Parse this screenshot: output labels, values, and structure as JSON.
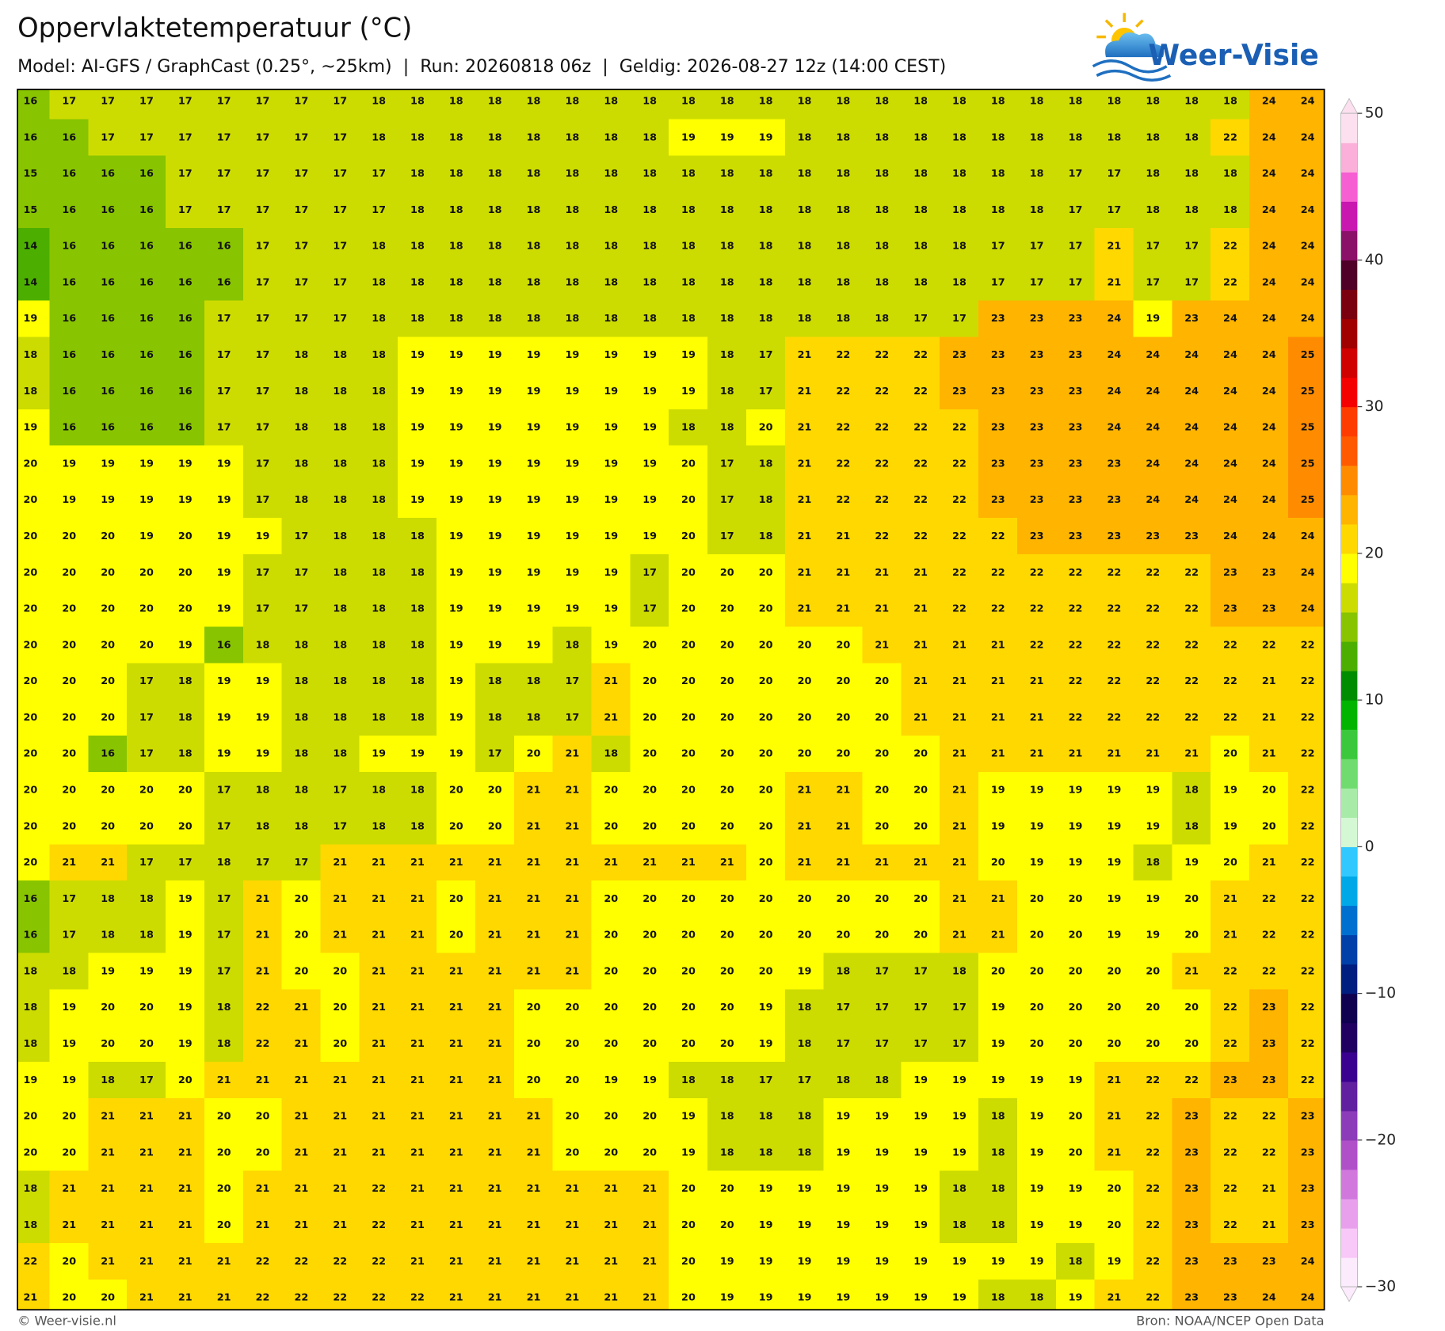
{
  "header": {
    "title": "Oppervlaktetemperatuur (°C)",
    "subtitle": "Model: AI-GFS / GraphCast (0.25°, ~25km)  |  Run: 20260818 06z  |  Geldig: 2026-08-27 12z (14:00 CEST)"
  },
  "logo": {
    "text": "Weer-Visie"
  },
  "map": {
    "grid": {
      "rows": [
        [
          16,
          17,
          17,
          17,
          17,
          17,
          17,
          17,
          17,
          18,
          18,
          18,
          18,
          18,
          18,
          18,
          18,
          18,
          18,
          18,
          18,
          18,
          18,
          18,
          18,
          18,
          18,
          18,
          18,
          18,
          18,
          18,
          24,
          24
        ],
        [
          16,
          16,
          17,
          17,
          17,
          17,
          17,
          17,
          17,
          18,
          18,
          18,
          18,
          18,
          18,
          18,
          18,
          19,
          19,
          19,
          18,
          18,
          18,
          18,
          18,
          18,
          18,
          18,
          18,
          18,
          18,
          22,
          24,
          24
        ],
        [
          15,
          16,
          16,
          16,
          17,
          17,
          17,
          17,
          17,
          17,
          18,
          18,
          18,
          18,
          18,
          18,
          18,
          18,
          18,
          18,
          18,
          18,
          18,
          18,
          18,
          18,
          18,
          17,
          17,
          18,
          18,
          18,
          24,
          24
        ],
        [
          15,
          16,
          16,
          16,
          17,
          17,
          17,
          17,
          17,
          17,
          18,
          18,
          18,
          18,
          18,
          18,
          18,
          18,
          18,
          18,
          18,
          18,
          18,
          18,
          18,
          18,
          18,
          17,
          17,
          18,
          18,
          18,
          24,
          24
        ],
        [
          14,
          16,
          16,
          16,
          16,
          16,
          17,
          17,
          17,
          18,
          18,
          18,
          18,
          18,
          18,
          18,
          18,
          18,
          18,
          18,
          18,
          18,
          18,
          18,
          18,
          17,
          17,
          17,
          21,
          17,
          17,
          22,
          24,
          24
        ],
        [
          14,
          16,
          16,
          16,
          16,
          16,
          17,
          17,
          17,
          18,
          18,
          18,
          18,
          18,
          18,
          18,
          18,
          18,
          18,
          18,
          18,
          18,
          18,
          18,
          18,
          17,
          17,
          17,
          21,
          17,
          17,
          22,
          24,
          24
        ],
        [
          19,
          16,
          16,
          16,
          16,
          17,
          17,
          17,
          17,
          18,
          18,
          18,
          18,
          18,
          18,
          18,
          18,
          18,
          18,
          18,
          18,
          18,
          18,
          17,
          17,
          23,
          23,
          23,
          24,
          19,
          23,
          24,
          24,
          24
        ],
        [
          18,
          16,
          16,
          16,
          16,
          17,
          17,
          18,
          18,
          18,
          19,
          19,
          19,
          19,
          19,
          19,
          19,
          19,
          18,
          17,
          21,
          22,
          22,
          22,
          23,
          23,
          23,
          23,
          24,
          24,
          24,
          24,
          24,
          25
        ],
        [
          18,
          16,
          16,
          16,
          16,
          17,
          17,
          18,
          18,
          18,
          19,
          19,
          19,
          19,
          19,
          19,
          19,
          19,
          18,
          17,
          21,
          22,
          22,
          22,
          23,
          23,
          23,
          23,
          24,
          24,
          24,
          24,
          24,
          25
        ],
        [
          19,
          16,
          16,
          16,
          16,
          17,
          17,
          18,
          18,
          18,
          19,
          19,
          19,
          19,
          19,
          19,
          19,
          18,
          18,
          20,
          21,
          22,
          22,
          22,
          22,
          23,
          23,
          23,
          24,
          24,
          24,
          24,
          24,
          25
        ],
        [
          20,
          19,
          19,
          19,
          19,
          19,
          17,
          18,
          18,
          18,
          19,
          19,
          19,
          19,
          19,
          19,
          19,
          20,
          17,
          18,
          21,
          22,
          22,
          22,
          22,
          23,
          23,
          23,
          23,
          24,
          24,
          24,
          24,
          25
        ],
        [
          20,
          19,
          19,
          19,
          19,
          19,
          17,
          18,
          18,
          18,
          19,
          19,
          19,
          19,
          19,
          19,
          19,
          20,
          17,
          18,
          21,
          22,
          22,
          22,
          22,
          23,
          23,
          23,
          23,
          24,
          24,
          24,
          24,
          25
        ],
        [
          20,
          20,
          20,
          19,
          20,
          19,
          19,
          17,
          18,
          18,
          18,
          19,
          19,
          19,
          19,
          19,
          19,
          20,
          17,
          18,
          21,
          21,
          22,
          22,
          22,
          22,
          23,
          23,
          23,
          23,
          23,
          24,
          24,
          24
        ],
        [
          20,
          20,
          20,
          20,
          20,
          19,
          17,
          17,
          18,
          18,
          18,
          19,
          19,
          19,
          19,
          19,
          17,
          20,
          20,
          20,
          21,
          21,
          21,
          21,
          22,
          22,
          22,
          22,
          22,
          22,
          22,
          23,
          23,
          24
        ],
        [
          20,
          20,
          20,
          20,
          20,
          19,
          17,
          17,
          18,
          18,
          18,
          19,
          19,
          19,
          19,
          19,
          17,
          20,
          20,
          20,
          21,
          21,
          21,
          21,
          22,
          22,
          22,
          22,
          22,
          22,
          22,
          23,
          23,
          24
        ],
        [
          20,
          20,
          20,
          20,
          19,
          16,
          18,
          18,
          18,
          18,
          18,
          19,
          19,
          19,
          18,
          19,
          20,
          20,
          20,
          20,
          20,
          20,
          21,
          21,
          21,
          21,
          22,
          22,
          22,
          22,
          22,
          22,
          22,
          22
        ],
        [
          20,
          20,
          20,
          17,
          18,
          19,
          19,
          18,
          18,
          18,
          18,
          19,
          18,
          18,
          17,
          21,
          20,
          20,
          20,
          20,
          20,
          20,
          20,
          21,
          21,
          21,
          21,
          22,
          22,
          22,
          22,
          22,
          21,
          22
        ],
        [
          20,
          20,
          20,
          17,
          18,
          19,
          19,
          18,
          18,
          18,
          18,
          19,
          18,
          18,
          17,
          21,
          20,
          20,
          20,
          20,
          20,
          20,
          20,
          21,
          21,
          21,
          21,
          22,
          22,
          22,
          22,
          22,
          21,
          22
        ],
        [
          20,
          20,
          16,
          17,
          18,
          19,
          19,
          18,
          18,
          19,
          19,
          19,
          17,
          20,
          21,
          18,
          20,
          20,
          20,
          20,
          20,
          20,
          20,
          20,
          21,
          21,
          21,
          21,
          21,
          21,
          21,
          20,
          21,
          22
        ],
        [
          20,
          20,
          20,
          20,
          20,
          17,
          18,
          18,
          17,
          18,
          18,
          20,
          20,
          21,
          21,
          20,
          20,
          20,
          20,
          20,
          21,
          21,
          20,
          20,
          21,
          19,
          19,
          19,
          19,
          19,
          18,
          19,
          20,
          22
        ],
        [
          20,
          20,
          20,
          20,
          20,
          17,
          18,
          18,
          17,
          18,
          18,
          20,
          20,
          21,
          21,
          20,
          20,
          20,
          20,
          20,
          21,
          21,
          20,
          20,
          21,
          19,
          19,
          19,
          19,
          19,
          18,
          19,
          20,
          22
        ],
        [
          20,
          21,
          21,
          17,
          17,
          18,
          17,
          17,
          21,
          21,
          21,
          21,
          21,
          21,
          21,
          21,
          21,
          21,
          21,
          20,
          21,
          21,
          21,
          21,
          21,
          20,
          19,
          19,
          19,
          18,
          19,
          20,
          21,
          22
        ],
        [
          16,
          17,
          18,
          18,
          19,
          17,
          21,
          20,
          21,
          21,
          21,
          20,
          21,
          21,
          21,
          20,
          20,
          20,
          20,
          20,
          20,
          20,
          20,
          20,
          21,
          21,
          20,
          20,
          19,
          19,
          20,
          21,
          22,
          22
        ],
        [
          16,
          17,
          18,
          18,
          19,
          17,
          21,
          20,
          21,
          21,
          21,
          20,
          21,
          21,
          21,
          20,
          20,
          20,
          20,
          20,
          20,
          20,
          20,
          20,
          21,
          21,
          20,
          20,
          19,
          19,
          20,
          21,
          22,
          22
        ],
        [
          18,
          18,
          19,
          19,
          19,
          17,
          21,
          20,
          20,
          21,
          21,
          21,
          21,
          21,
          21,
          20,
          20,
          20,
          20,
          20,
          19,
          18,
          17,
          17,
          18,
          20,
          20,
          20,
          20,
          20,
          21,
          22,
          22,
          22
        ],
        [
          18,
          19,
          20,
          20,
          19,
          18,
          22,
          21,
          20,
          21,
          21,
          21,
          21,
          20,
          20,
          20,
          20,
          20,
          20,
          19,
          18,
          17,
          17,
          17,
          17,
          19,
          20,
          20,
          20,
          20,
          20,
          22,
          23,
          22
        ],
        [
          18,
          19,
          20,
          20,
          19,
          18,
          22,
          21,
          20,
          21,
          21,
          21,
          21,
          20,
          20,
          20,
          20,
          20,
          20,
          19,
          18,
          17,
          17,
          17,
          17,
          19,
          20,
          20,
          20,
          20,
          20,
          22,
          23,
          22
        ],
        [
          19,
          19,
          18,
          17,
          20,
          21,
          21,
          21,
          21,
          21,
          21,
          21,
          21,
          20,
          20,
          19,
          19,
          18,
          18,
          17,
          17,
          18,
          18,
          19,
          19,
          19,
          19,
          19,
          21,
          22,
          22,
          23,
          23,
          22
        ],
        [
          20,
          20,
          21,
          21,
          21,
          20,
          20,
          21,
          21,
          21,
          21,
          21,
          21,
          21,
          20,
          20,
          20,
          19,
          18,
          18,
          18,
          19,
          19,
          19,
          19,
          18,
          19,
          20,
          21,
          22,
          23,
          22,
          22,
          23
        ],
        [
          20,
          20,
          21,
          21,
          21,
          20,
          20,
          21,
          21,
          21,
          21,
          21,
          21,
          21,
          20,
          20,
          20,
          19,
          18,
          18,
          18,
          19,
          19,
          19,
          19,
          18,
          19,
          20,
          21,
          22,
          23,
          22,
          22,
          23
        ],
        [
          18,
          21,
          21,
          21,
          21,
          20,
          21,
          21,
          21,
          22,
          21,
          21,
          21,
          21,
          21,
          21,
          21,
          20,
          20,
          19,
          19,
          19,
          19,
          19,
          18,
          18,
          19,
          19,
          20,
          22,
          23,
          22,
          21,
          23
        ],
        [
          18,
          21,
          21,
          21,
          21,
          20,
          21,
          21,
          21,
          22,
          21,
          21,
          21,
          21,
          21,
          21,
          21,
          20,
          20,
          19,
          19,
          19,
          19,
          19,
          18,
          18,
          19,
          19,
          20,
          22,
          23,
          22,
          21,
          23
        ],
        [
          22,
          20,
          21,
          21,
          21,
          21,
          22,
          22,
          22,
          22,
          21,
          21,
          21,
          21,
          21,
          21,
          21,
          20,
          19,
          19,
          19,
          19,
          19,
          19,
          19,
          19,
          19,
          18,
          19,
          22,
          23,
          23,
          23,
          24
        ],
        [
          21,
          20,
          20,
          21,
          21,
          21,
          22,
          22,
          22,
          22,
          22,
          21,
          21,
          21,
          21,
          21,
          21,
          20,
          19,
          19,
          19,
          19,
          19,
          19,
          19,
          18,
          18,
          19,
          21,
          22,
          23,
          23,
          24,
          24
        ]
      ]
    },
    "colorbar": {
      "lim": [
        -30,
        50
      ],
      "ticks": [
        {
          "value": -30,
          "label": "−30"
        },
        {
          "value": -20,
          "label": "−20"
        },
        {
          "value": -10,
          "label": "−10"
        },
        0,
        10,
        20,
        30,
        40,
        50
      ],
      "colors": [
        "#fcebfc",
        "#f8c8f8",
        "#e8a0ec",
        "#d078dc",
        "#b050c8",
        "#8c3cb8",
        "#6020a0",
        "#3a0090",
        "#200060",
        "#100050",
        "#001e80",
        "#0040a8",
        "#0070d0",
        "#00a8e8",
        "#30c8ff",
        "#d4f8d4",
        "#a8eba8",
        "#70dc70",
        "#3cc83c",
        "#00b400",
        "#008c00",
        "#4caf00",
        "#88c400",
        "#cddc00",
        "#ffff00",
        "#ffd800",
        "#ffb400",
        "#ff8c00",
        "#ff5a00",
        "#ff3c00",
        "#f50000",
        "#d00000",
        "#a00000",
        "#7a0010",
        "#500028",
        "#8b1068",
        "#c818b0",
        "#f55fd2",
        "#fbb0d9",
        "#fde0ef"
      ]
    }
  },
  "footer": {
    "left": "© Weer-visie.nl",
    "right": "Bron: NOAA/NCEP Open Data"
  }
}
